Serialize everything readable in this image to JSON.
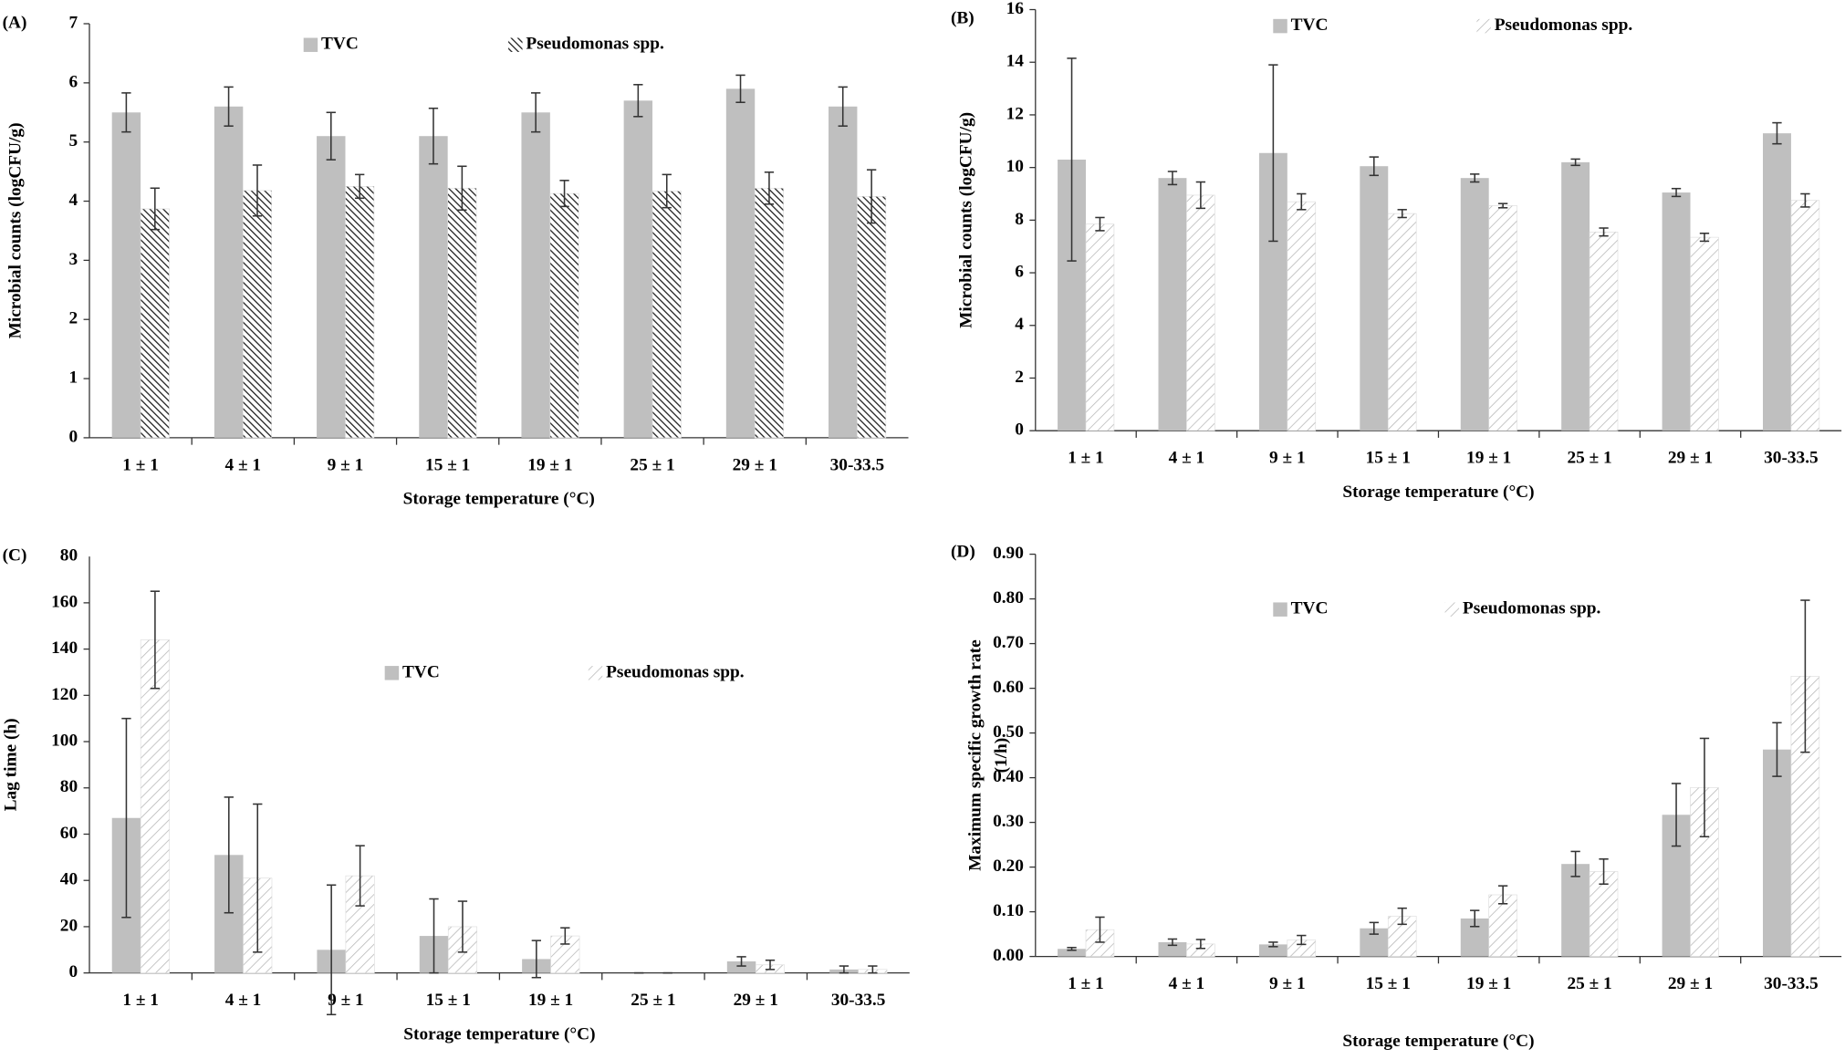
{
  "chart_data": [
    {
      "type": "bar",
      "panel": "(A)",
      "ylabel": "Microbial counts (logCFU/g)",
      "xlabel": "Storage temperature (°C)",
      "categories": [
        "1 ± 1",
        "4 ± 1",
        "9 ± 1",
        "15 ± 1",
        "19 ± 1",
        "25 ± 1",
        "29 ± 1",
        "30-33.5"
      ],
      "ylim": [
        0,
        7
      ],
      "yticks": [
        0,
        1,
        2,
        3,
        4,
        5,
        6,
        7
      ],
      "series": [
        {
          "name": "TVC",
          "color": "#bfbfbf",
          "values": [
            5.5,
            5.6,
            5.1,
            5.1,
            5.5,
            5.7,
            5.9,
            5.6
          ],
          "errors": [
            0.33,
            0.33,
            0.4,
            0.47,
            0.33,
            0.27,
            0.23,
            0.33
          ]
        },
        {
          "name": "Pseudomonas spp.",
          "color": "#222222",
          "hatch_angle": -45,
          "values": [
            3.87,
            4.18,
            4.25,
            4.22,
            4.13,
            4.17,
            4.22,
            4.08
          ],
          "errors": [
            0.35,
            0.43,
            0.2,
            0.37,
            0.22,
            0.28,
            0.27,
            0.45
          ]
        }
      ]
    },
    {
      "type": "bar",
      "panel": "(B)",
      "ylabel": "Microbial counts (logCFU/g)",
      "xlabel": "Storage temperature (°C)",
      "categories": [
        "1 ± 1",
        "4 ± 1",
        "9 ± 1",
        "15 ± 1",
        "19 ± 1",
        "25 ± 1",
        "29 ± 1",
        "30-33.5"
      ],
      "ylim": [
        0,
        16
      ],
      "yticks": [
        0,
        2,
        4,
        6,
        8,
        10,
        12,
        14,
        16
      ],
      "series": [
        {
          "name": "TVC",
          "color": "#bfbfbf",
          "values": [
            10.3,
            9.6,
            10.55,
            10.05,
            9.6,
            10.2,
            9.05,
            11.3
          ],
          "errors": [
            3.85,
            0.25,
            3.35,
            0.35,
            0.15,
            0.12,
            0.15,
            0.4
          ]
        },
        {
          "name": "Pseudomonas spp.",
          "color": "#b8b8b8",
          "hatch_angle": 45,
          "values": [
            7.85,
            8.95,
            8.7,
            8.25,
            8.55,
            7.55,
            7.35,
            8.75
          ],
          "errors": [
            0.25,
            0.5,
            0.3,
            0.15,
            0.08,
            0.15,
            0.15,
            0.25
          ]
        }
      ]
    },
    {
      "type": "bar",
      "panel": "(C)",
      "ylabel": "Lag time (h)",
      "xlabel": "Storage temperature (°C)",
      "categories": [
        "1 ± 1",
        "4 ± 1",
        "9 ± 1",
        "15 ± 1",
        "19 ± 1",
        "25 ± 1",
        "29 ± 1",
        "30-33.5"
      ],
      "ylim": [
        0,
        180
      ],
      "yticks": [
        0,
        20,
        40,
        60,
        80,
        100,
        120,
        140,
        160
      ],
      "annotations": [
        {
          "text": "80",
          "y": 180
        }
      ],
      "series": [
        {
          "name": "TVC",
          "color": "#bfbfbf",
          "values": [
            67,
            51,
            10,
            16,
            6,
            0,
            5,
            1.5
          ],
          "errors": [
            43,
            25,
            28,
            16,
            8,
            0,
            2,
            1.5
          ]
        },
        {
          "name": "Pseudomonas spp.",
          "color": "#b8b8b8",
          "hatch_angle": 45,
          "values": [
            144,
            41,
            42,
            20,
            16,
            0,
            3.5,
            1.5
          ],
          "errors": [
            21,
            32,
            13,
            11,
            3.5,
            0,
            2,
            1.5
          ]
        }
      ]
    },
    {
      "type": "bar",
      "panel": "(D)",
      "ylabel": [
        "Maximum specific growth rate",
        "(1/h)"
      ],
      "xlabel": "Storage temperature (°C)",
      "categories": [
        "1 ± 1",
        "4 ± 1",
        "9 ± 1",
        "15 ± 1",
        "19 ± 1",
        "25 ± 1",
        "29 ± 1",
        "30-33.5"
      ],
      "ylim": [
        0,
        0.9
      ],
      "yticks": [
        {
          "value": 0,
          "label": "0.00"
        },
        {
          "value": 0.1,
          "label": "0.10"
        },
        {
          "value": 0.2,
          "label": "0.20"
        },
        {
          "value": 0.3,
          "label": "0.30"
        },
        {
          "value": 0.4,
          "label": "0.40"
        },
        {
          "value": 0.5,
          "label": "0.50"
        },
        {
          "value": 0.6,
          "label": "0.60"
        },
        {
          "value": 0.7,
          "label": "0.70"
        },
        {
          "value": 0.8,
          "label": "0.80"
        },
        {
          "value": 0.9,
          "label": "0.90"
        }
      ],
      "series": [
        {
          "name": "TVC",
          "color": "#bfbfbf",
          "values": [
            0.017,
            0.032,
            0.027,
            0.063,
            0.085,
            0.207,
            0.317,
            0.463
          ],
          "errors": [
            0.003,
            0.007,
            0.005,
            0.013,
            0.018,
            0.028,
            0.07,
            0.06
          ]
        },
        {
          "name": "Pseudomonas spp.",
          "color": "#b8b8b8",
          "hatch_angle": 45,
          "values": [
            0.06,
            0.028,
            0.037,
            0.09,
            0.138,
            0.19,
            0.378,
            0.627
          ],
          "errors": [
            0.028,
            0.01,
            0.01,
            0.018,
            0.02,
            0.028,
            0.11,
            0.17
          ]
        }
      ]
    }
  ]
}
